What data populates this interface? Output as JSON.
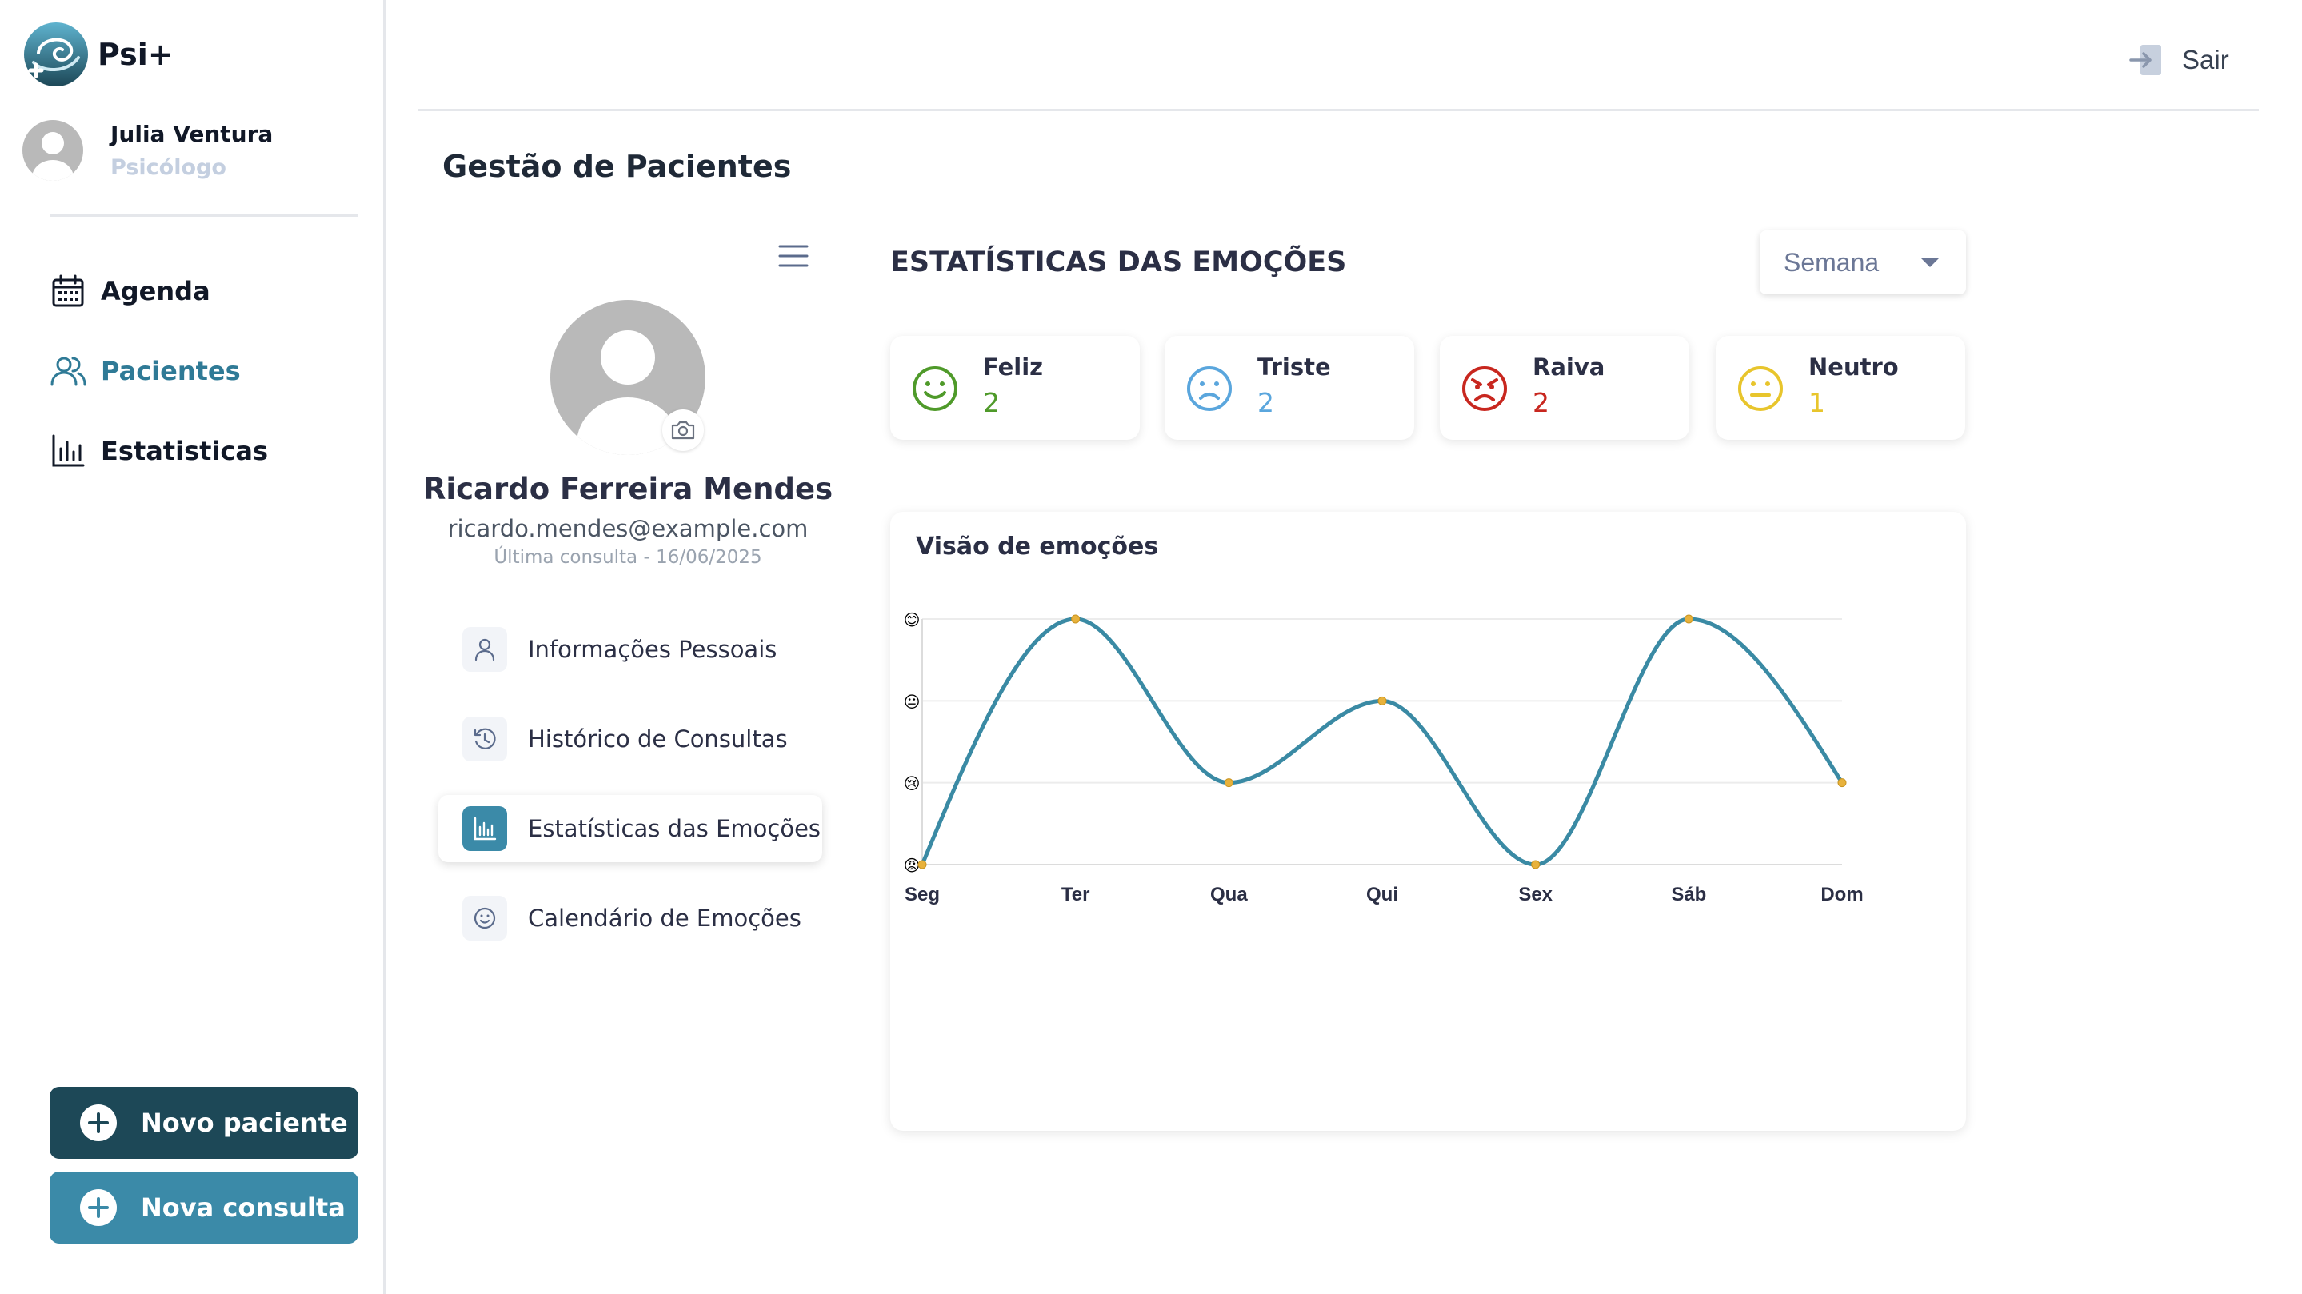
{
  "app": {
    "name": "Psi+"
  },
  "user": {
    "name": "Julia Ventura",
    "role": "Psicólogo"
  },
  "nav": [
    {
      "label": "Agenda",
      "icon": "calendar-icon",
      "active": false
    },
    {
      "label": "Pacientes",
      "icon": "users-icon",
      "active": true
    },
    {
      "label": "Estatisticas",
      "icon": "bar-chart-icon",
      "active": false
    }
  ],
  "actions": {
    "new_patient": "Novo paciente",
    "new_consult": "Nova consulta"
  },
  "header": {
    "logout": "Sair"
  },
  "page": {
    "title": "Gestão de Pacientes"
  },
  "patient": {
    "name": "Ricardo Ferreira Mendes",
    "email": "ricardo.mendes@example.com",
    "last_consult": "Última consulta - 16/06/2025"
  },
  "patient_menu": [
    {
      "label": "Informações Pessoais",
      "icon": "user-icon",
      "active": false
    },
    {
      "label": "Histórico de Consultas",
      "icon": "history-icon",
      "active": false
    },
    {
      "label": "Estatísticas das Emoções",
      "icon": "bar-chart-icon",
      "active": true
    },
    {
      "label": "Calendário de Emoções",
      "icon": "smile-icon",
      "active": false
    }
  ],
  "stats": {
    "title": "ESTATÍSTICAS DAS EMOÇÕES",
    "period": "Semana",
    "cards": [
      {
        "label": "Feliz",
        "count": "2",
        "color": "#4f9a2a",
        "icon": "happy-face-icon"
      },
      {
        "label": "Triste",
        "count": "2",
        "color": "#5aa6dd",
        "icon": "sad-face-icon"
      },
      {
        "label": "Raiva",
        "count": "2",
        "color": "#c8271f",
        "icon": "angry-face-icon"
      },
      {
        "label": "Neutro",
        "count": "1",
        "color": "#e8c52c",
        "icon": "neutral-face-icon"
      }
    ]
  },
  "chart_data": {
    "type": "line",
    "title": "Visão de emoções",
    "categories": [
      "Seg",
      "Ter",
      "Qua",
      "Qui",
      "Sex",
      "Sáb",
      "Dom"
    ],
    "y_levels": [
      "😡",
      "😢",
      "😐",
      "😊"
    ],
    "series": [
      {
        "values": [
          0,
          3,
          1,
          2,
          0,
          3,
          1
        ],
        "color": "#3a8aa4"
      }
    ],
    "ylim": [
      0,
      3
    ],
    "grid": true,
    "smooth": true
  }
}
